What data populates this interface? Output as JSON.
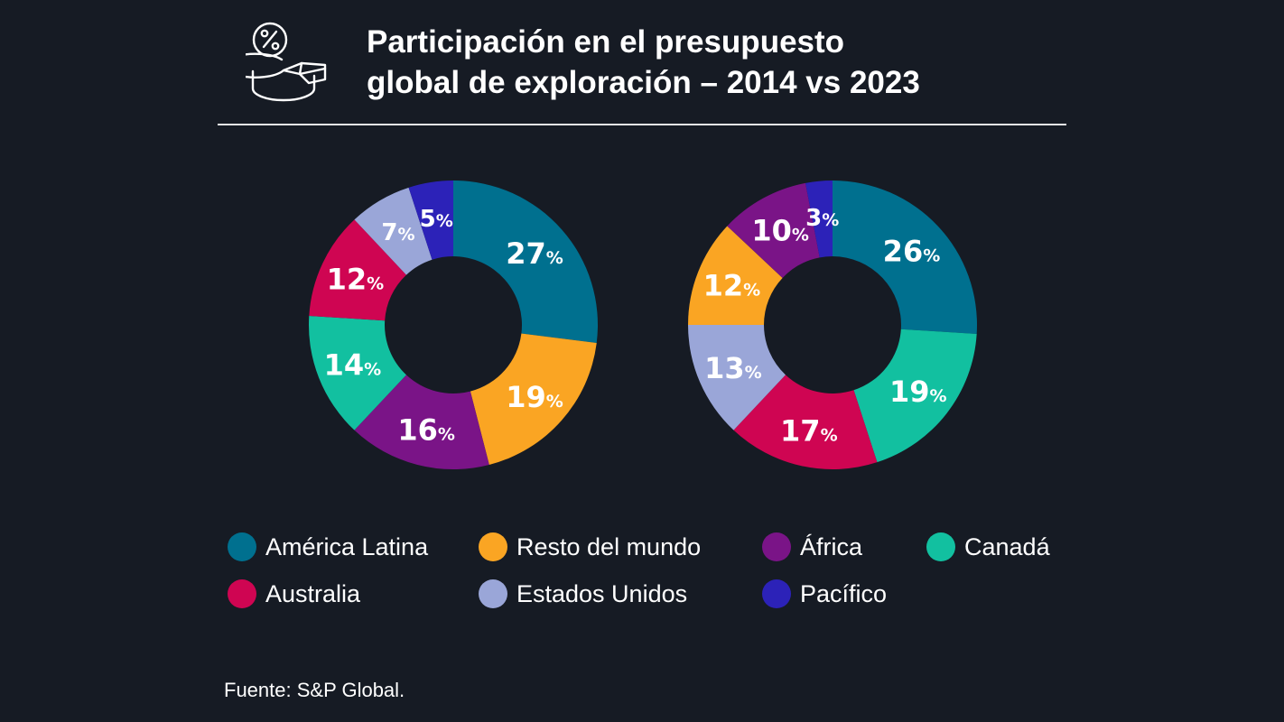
{
  "title": {
    "line1": "Participación en el presupuesto",
    "line2": "global de exploración – 2014 vs 2023"
  },
  "icon": "percent-pie-chart-icon",
  "source": "Fuente: S&P Global.",
  "colors": {
    "background": "#161b24",
    "america_latina": "#00708f",
    "resto_del_mundo": "#faa523",
    "africa": "#7a1487",
    "canada": "#12c0a0",
    "australia": "#cf0552",
    "estados_unidos": "#9aa6d8",
    "pacifico": "#2c22b8"
  },
  "legend": [
    {
      "label": "América Latina",
      "color": "#00708f"
    },
    {
      "label": "Resto del mundo",
      "color": "#faa523"
    },
    {
      "label": "África",
      "color": "#7a1487"
    },
    {
      "label": "Canadá",
      "color": "#12c0a0"
    },
    {
      "label": "Australia",
      "color": "#cf0552"
    },
    {
      "label": "Estados Unidos",
      "color": "#9aa6d8"
    },
    {
      "label": "Pacífico",
      "color": "#2c22b8"
    }
  ],
  "chart_data": [
    {
      "type": "pie",
      "variant": "donut",
      "year": "2014",
      "unit": "%",
      "slices": [
        {
          "name": "América Latina",
          "value": 27,
          "label": "27",
          "color": "#00708f"
        },
        {
          "name": "Resto del mundo",
          "value": 19,
          "label": "19",
          "color": "#faa523"
        },
        {
          "name": "África",
          "value": 16,
          "label": "16",
          "color": "#7a1487"
        },
        {
          "name": "Canadá",
          "value": 14,
          "label": "14",
          "color": "#12c0a0"
        },
        {
          "name": "Australia",
          "value": 12,
          "label": "12",
          "color": "#cf0552"
        },
        {
          "name": "Estados Unidos",
          "value": 7,
          "label": "7",
          "color": "#9aa6d8"
        },
        {
          "name": "Pacífico",
          "value": 5,
          "label": "5",
          "color": "#2c22b8"
        }
      ]
    },
    {
      "type": "pie",
      "variant": "donut",
      "year": "2023",
      "unit": "%",
      "slices": [
        {
          "name": "América Latina",
          "value": 26,
          "label": "26",
          "color": "#00708f"
        },
        {
          "name": "Canadá",
          "value": 19,
          "label": "19",
          "color": "#12c0a0"
        },
        {
          "name": "Australia",
          "value": 17,
          "label": "17",
          "color": "#cf0552"
        },
        {
          "name": "Estados Unidos",
          "value": 13,
          "label": "13",
          "color": "#9aa6d8"
        },
        {
          "name": "Resto del mundo",
          "value": 12,
          "label": "12",
          "color": "#faa523"
        },
        {
          "name": "África",
          "value": 10,
          "label": "10",
          "color": "#7a1487"
        },
        {
          "name": "Pacífico",
          "value": 3,
          "label": "3",
          "color": "#2c22b8"
        }
      ]
    }
  ]
}
